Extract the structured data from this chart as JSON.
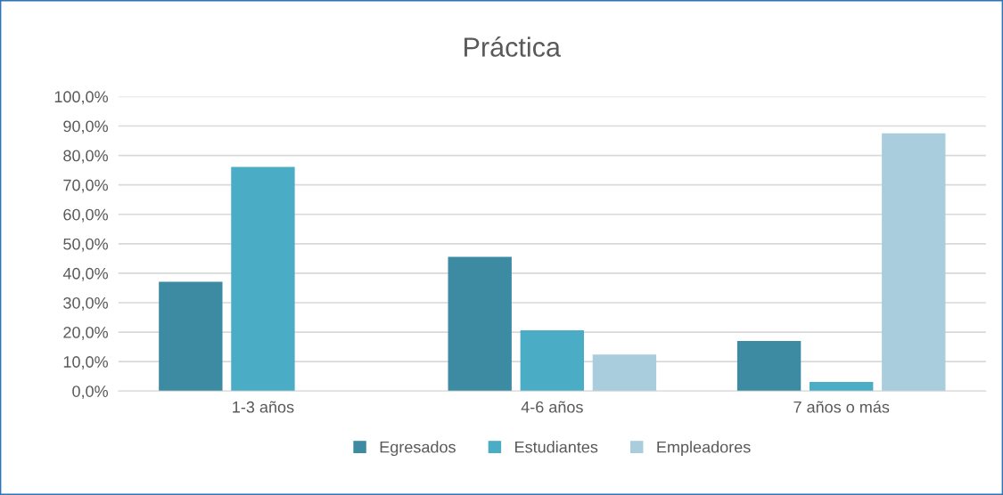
{
  "chart_data": {
    "type": "bar",
    "title": "Práctica",
    "categories": [
      "1-3 años",
      "4-6 años",
      "7 años o más"
    ],
    "series": [
      {
        "name": "Egresados",
        "color": "#3d8ba3",
        "values": [
          37.1,
          45.6,
          17.0
        ]
      },
      {
        "name": "Estudiantes",
        "color": "#4bacc6",
        "values": [
          76.1,
          20.6,
          3.1
        ]
      },
      {
        "name": "Empleadores",
        "color": "#a9cddd",
        "values": [
          0,
          12.4,
          87.5
        ]
      }
    ],
    "ylim": [
      0,
      100
    ],
    "yticks": [
      {
        "value": 0,
        "label": "0,0%"
      },
      {
        "value": 10,
        "label": "10,0%"
      },
      {
        "value": 20,
        "label": "20,0%"
      },
      {
        "value": 30,
        "label": "30,0%"
      },
      {
        "value": 40,
        "label": "40,0%"
      },
      {
        "value": 50,
        "label": "50,0%"
      },
      {
        "value": 60,
        "label": "60,0%"
      },
      {
        "value": 70,
        "label": "70,0%"
      },
      {
        "value": 80,
        "label": "80,0%"
      },
      {
        "value": 90,
        "label": "90,0%"
      },
      {
        "value": 100,
        "label": "100,0%"
      }
    ],
    "grid": "y",
    "legend": "bottom"
  }
}
